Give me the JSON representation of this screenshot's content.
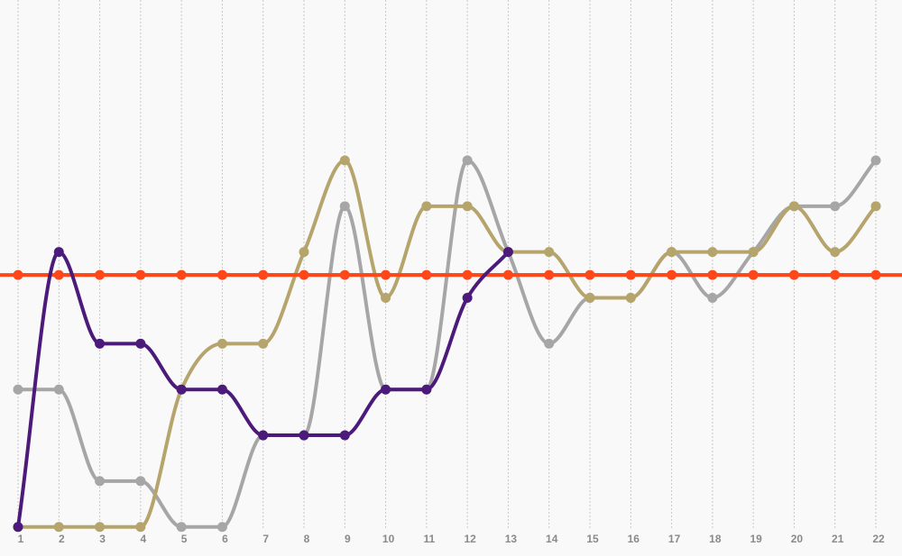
{
  "chart_data": {
    "type": "line",
    "categories": [
      "1",
      "2",
      "3",
      "4",
      "5",
      "6",
      "7",
      "8",
      "9",
      "10",
      "11",
      "12",
      "13",
      "14",
      "15",
      "16",
      "17",
      "18",
      "19",
      "20",
      "21",
      "22"
    ],
    "ylim": [
      -0.3,
      11.5
    ],
    "grid": true,
    "series": [
      {
        "color": "#a6a6a6",
        "values": [
          3,
          3,
          1,
          1,
          0,
          0,
          2,
          2,
          7,
          3,
          3,
          8,
          6,
          4,
          5,
          5,
          6,
          5,
          6,
          7,
          7,
          8
        ]
      },
      {
        "color": "#b5a46b",
        "values": [
          0,
          0,
          0,
          0,
          3,
          4,
          4,
          6,
          8,
          5,
          7,
          7,
          6,
          6,
          5,
          5,
          6,
          6,
          6,
          7,
          6,
          7
        ]
      },
      {
        "color": "#ff4719",
        "values": [
          5.5,
          5.5,
          5.5,
          5.5,
          5.5,
          5.5,
          5.5,
          5.5,
          5.5,
          5.5,
          5.5,
          5.5,
          5.5,
          5.5,
          5.5,
          5.5,
          5.5,
          5.5,
          5.5,
          5.5,
          5.5,
          5.5
        ]
      },
      {
        "color": "#4b1a7a",
        "values": [
          0,
          6,
          4,
          4,
          3,
          3,
          2,
          2,
          2,
          3,
          3,
          5,
          6,
          null,
          null,
          null,
          null,
          null,
          null,
          null,
          null,
          null
        ]
      }
    ]
  }
}
